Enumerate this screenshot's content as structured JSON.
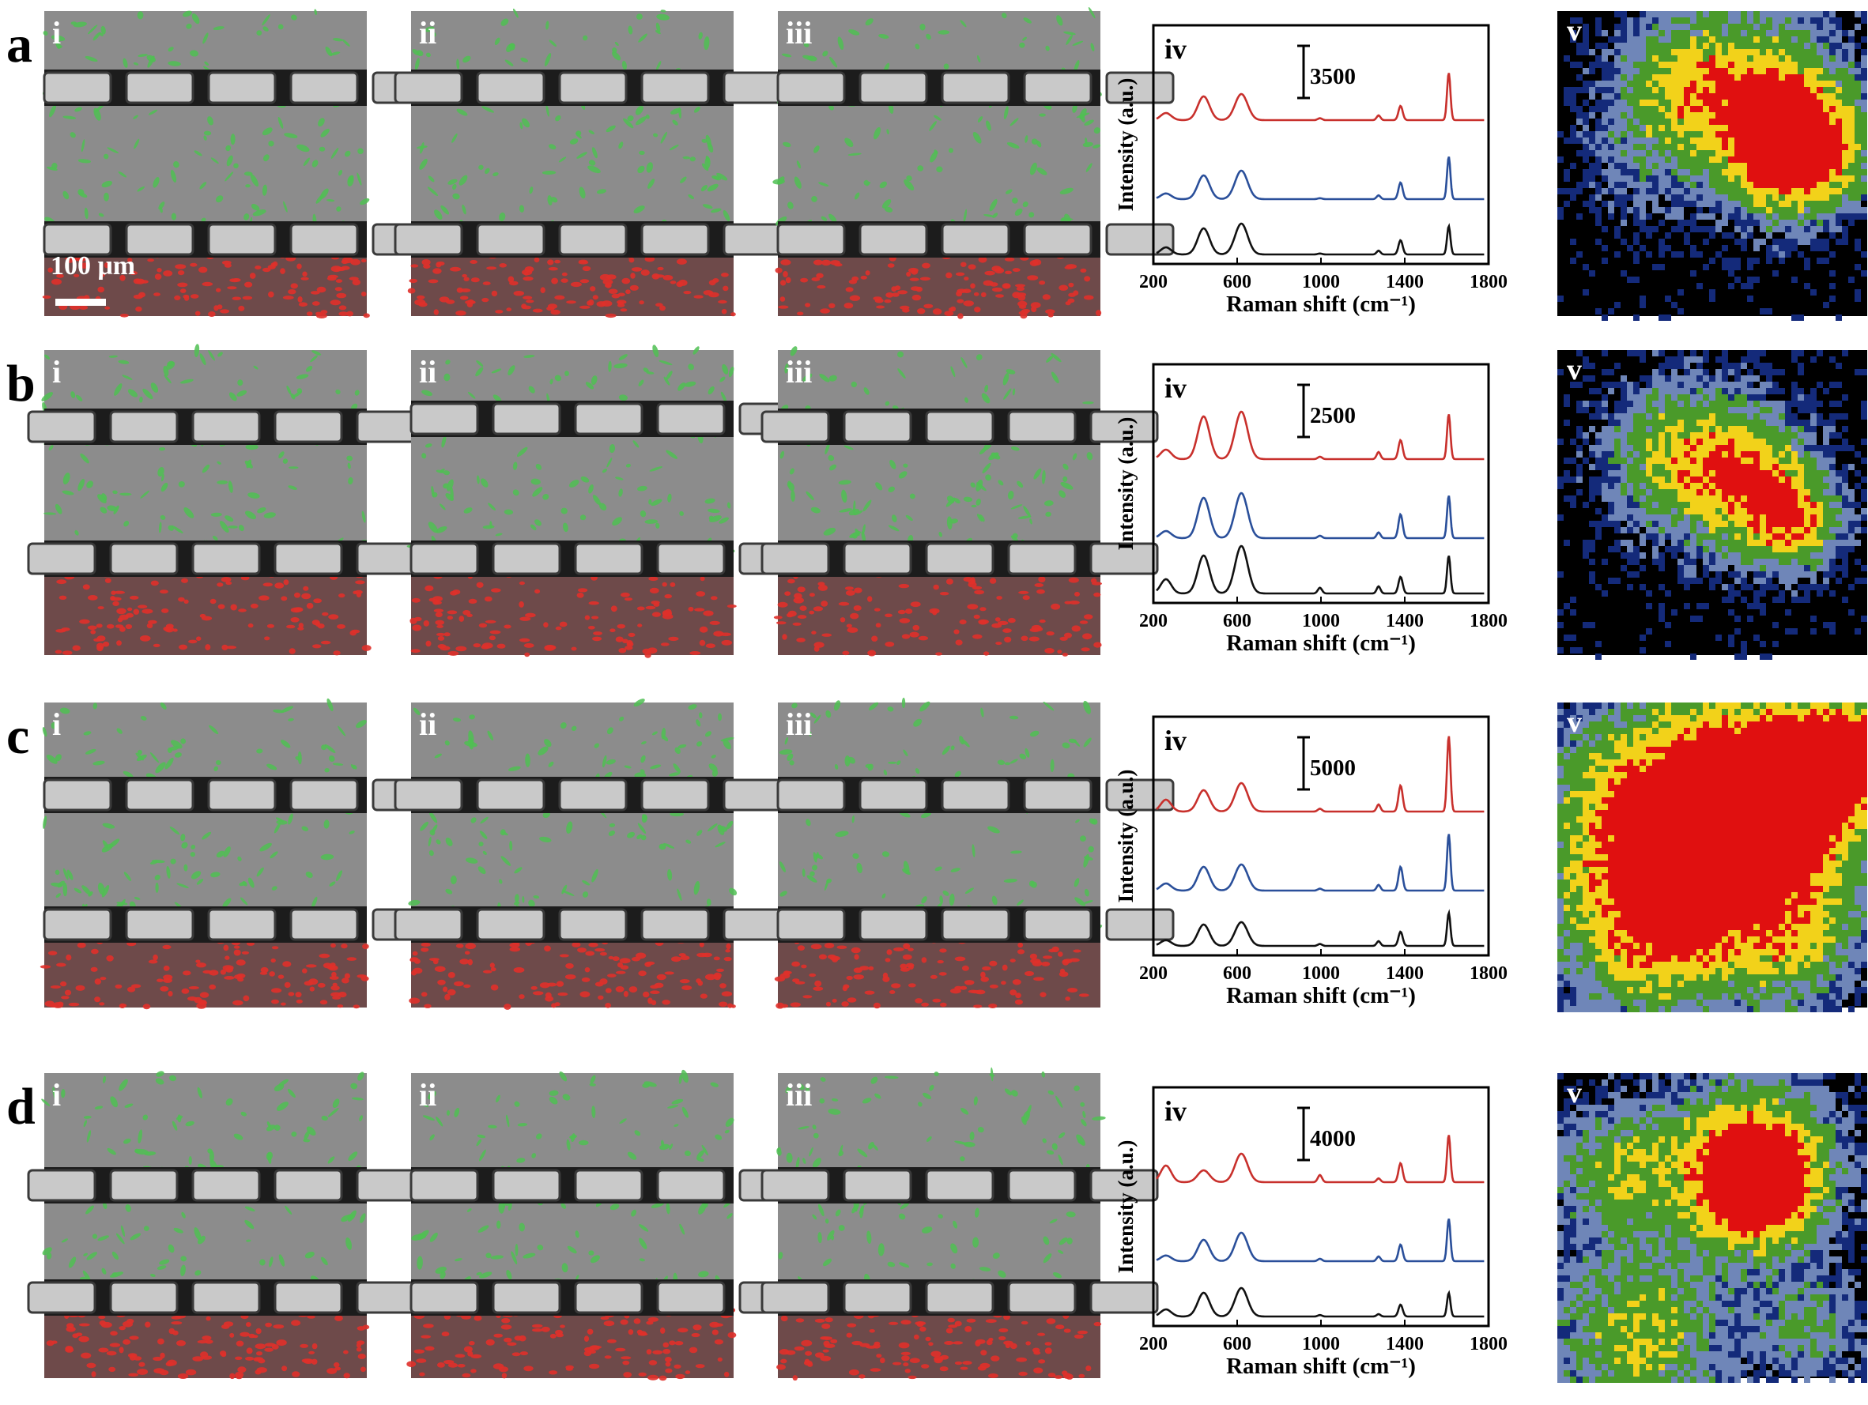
{
  "panels": [
    {
      "letter": "a",
      "scale_text": "3500"
    },
    {
      "letter": "b",
      "scale_text": "2500"
    },
    {
      "letter": "c",
      "scale_text": "5000"
    },
    {
      "letter": "d",
      "scale_text": "4000"
    }
  ],
  "micro_labels": [
    "i",
    "ii",
    "iii"
  ],
  "spectrum_label": "iv",
  "map_label": "v",
  "scale_bar_text": "100 μm",
  "colors": {
    "red_trace": "#c8302c",
    "blue_trace": "#2a4f9a",
    "black_trace": "#111111"
  },
  "chart_data": {
    "type": "line",
    "xlabel": "Raman shift (cm⁻¹)",
    "ylabel": "Intensity (a.u.)",
    "xlim": [
      200,
      1800
    ],
    "xticks": [
      200,
      600,
      1000,
      1400,
      1800
    ],
    "xtick_labels": [
      "200",
      "600",
      "1000",
      "1400",
      "1800"
    ],
    "peaks_cm": [
      260,
      440,
      620,
      995,
      1275,
      1380,
      1610
    ],
    "series": [
      {
        "color": "red",
        "rel_heights": [
          [
            0.15,
            0.5,
            0.55,
            0.04,
            0.1,
            0.3,
            1.0
          ],
          [
            0.2,
            0.9,
            1.0,
            0.05,
            0.15,
            0.4,
            0.95
          ],
          [
            0.25,
            0.45,
            0.6,
            0.06,
            0.15,
            0.55,
            1.6
          ],
          [
            0.35,
            0.25,
            0.6,
            0.15,
            0.08,
            0.4,
            1.0
          ]
        ]
      },
      {
        "color": "blue",
        "rel_heights": [
          [
            0.12,
            0.5,
            0.6,
            0.02,
            0.08,
            0.35,
            0.9
          ],
          [
            0.15,
            0.85,
            0.95,
            0.05,
            0.12,
            0.5,
            0.9
          ],
          [
            0.15,
            0.5,
            0.55,
            0.04,
            0.12,
            0.5,
            1.2
          ],
          [
            0.12,
            0.45,
            0.6,
            0.05,
            0.1,
            0.35,
            0.9
          ]
        ]
      },
      {
        "color": "black",
        "rel_heights": [
          [
            0.15,
            0.55,
            0.65,
            0.02,
            0.08,
            0.3,
            0.6
          ],
          [
            0.3,
            0.8,
            1.0,
            0.12,
            0.15,
            0.35,
            0.8
          ],
          [
            0.12,
            0.45,
            0.5,
            0.04,
            0.1,
            0.3,
            0.7
          ],
          [
            0.15,
            0.5,
            0.6,
            0.03,
            0.05,
            0.25,
            0.5
          ]
        ]
      }
    ]
  }
}
